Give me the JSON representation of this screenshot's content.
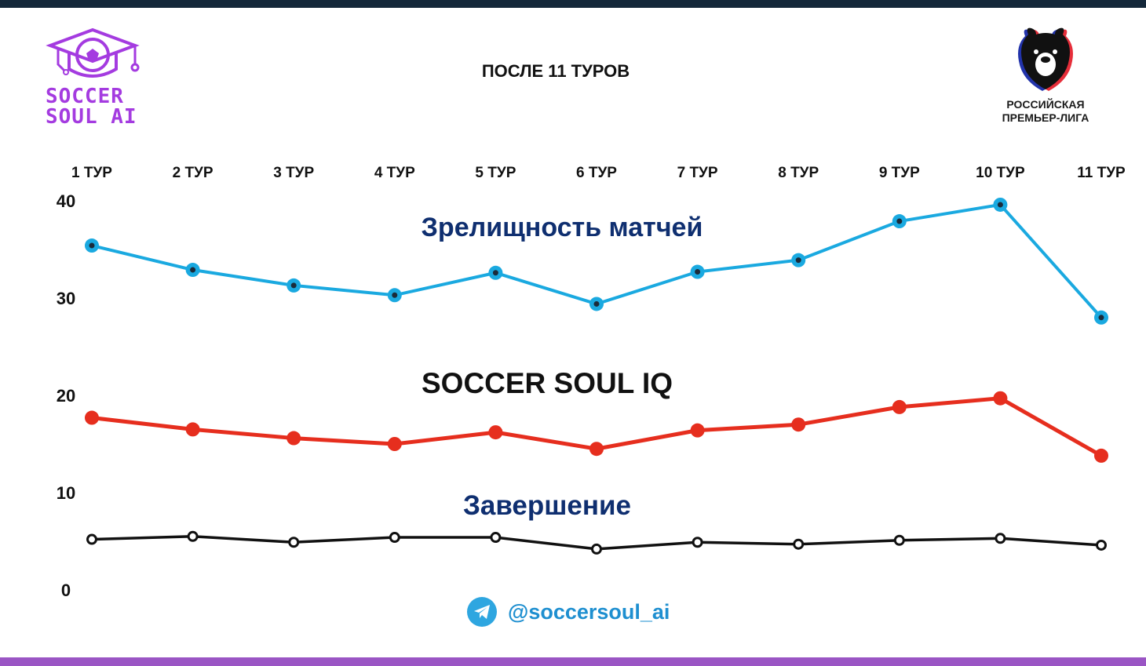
{
  "header": {
    "subtitle": "ПОСЛЕ 11 ТУРОВ",
    "left_logo": {
      "line1": "SOCCER",
      "line2": "SOUL AI"
    },
    "right_logo": {
      "line1": "РОССИЙСКАЯ",
      "line2": "ПРЕМЬЕР-ЛИГА"
    }
  },
  "footer": {
    "handle": "@soccersoul_ai",
    "icon": "telegram-icon"
  },
  "colors": {
    "top_bar": "#14283a",
    "bottom_bar": "#9a55c4",
    "logo_purple": "#a43be0",
    "spectacle": "#1aa9e0",
    "iq": "#e62e1e",
    "completion": "#111111",
    "label_navy": "#0f2f70",
    "telegram": "#2ea6e0"
  },
  "chart_data": {
    "type": "line",
    "categories": [
      "1 ТУР",
      "2 ТУР",
      "3 ТУР",
      "4 ТУР",
      "5 ТУР",
      "6 ТУР",
      "7 ТУР",
      "8 ТУР",
      "9 ТУР",
      "10 ТУР",
      "11 ТУР"
    ],
    "y_ticks": [
      "0",
      "10",
      "20",
      "30",
      "40"
    ],
    "ylim": [
      0,
      40
    ],
    "grid": false,
    "x_axis_position": "top",
    "series": [
      {
        "name": "Зрелищность матчей",
        "color": "#1aa9e0",
        "label_color": "#0f2f70",
        "values": [
          35.4,
          32.9,
          31.3,
          30.3,
          32.6,
          29.4,
          32.7,
          33.9,
          37.9,
          39.6,
          28.0
        ]
      },
      {
        "name": "SOCCER SOUL IQ",
        "color": "#e62e1e",
        "label_color": "#111111",
        "values": [
          17.7,
          16.5,
          15.6,
          15.0,
          16.2,
          14.5,
          16.4,
          17.0,
          18.8,
          19.7,
          13.8
        ]
      },
      {
        "name": "Завершение",
        "color": "#111111",
        "label_color": "#0f2f70",
        "values": [
          5.2,
          5.5,
          4.9,
          5.4,
          5.4,
          4.2,
          4.9,
          4.7,
          5.1,
          5.3,
          4.6
        ]
      }
    ]
  }
}
